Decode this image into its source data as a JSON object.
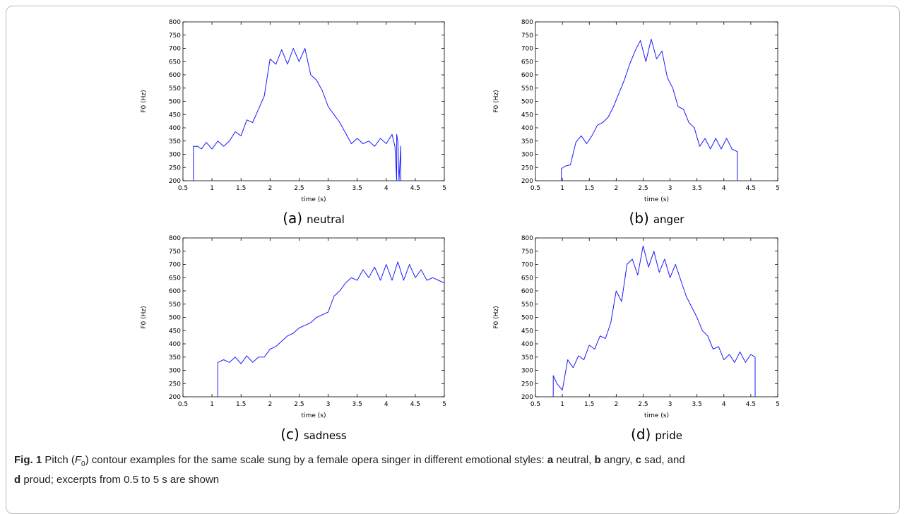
{
  "panels": [
    {
      "letter": "(a)",
      "name": "neutral"
    },
    {
      "letter": "(b)",
      "name": "anger"
    },
    {
      "letter": "(c)",
      "name": "sadness"
    },
    {
      "letter": "(d)",
      "name": "pride"
    }
  ],
  "caption": {
    "fig_label": "Fig. 1",
    "text_1": " Pitch (",
    "f_symbol": "F",
    "f_subscript": "0",
    "text_2": ") contour examples for the same scale sung by a female opera singer in different emotional styles: ",
    "a": "a",
    "a_text": " neutral, ",
    "b": "b",
    "b_text": " angry, ",
    "c": "c",
    "c_text": " sad, and",
    "d": "d",
    "d_text": " proud; excerpts from 0.5 to 5 s are shown"
  },
  "chart_data": [
    {
      "type": "line",
      "xlabel": "time (s)",
      "ylabel": "F0 (Hz)",
      "xlim": [
        0.5,
        5
      ],
      "ylim": [
        200,
        800
      ],
      "xticks": [
        0.5,
        1,
        1.5,
        2,
        2.5,
        3,
        3.5,
        4,
        4.5,
        5
      ],
      "yticks": [
        200,
        250,
        300,
        350,
        400,
        450,
        500,
        550,
        600,
        650,
        700,
        750,
        800
      ],
      "color": "#1a1aff",
      "series": [
        {
          "x": [
            0.68,
            0.68,
            0.75,
            0.82,
            0.9,
            1.0,
            1.1,
            1.2,
            1.3,
            1.4,
            1.5,
            1.6,
            1.7,
            1.8,
            1.9,
            2.0,
            2.1,
            2.2,
            2.3,
            2.4,
            2.5,
            2.6,
            2.7,
            2.8,
            2.9,
            3.0,
            3.1,
            3.2,
            3.3,
            3.4,
            3.5,
            3.6,
            3.7,
            3.8,
            3.9,
            4.0,
            4.1,
            4.15,
            4.18,
            4.18,
            4.2,
            4.22,
            4.25,
            4.25
          ],
          "y": [
            200,
            330,
            330,
            320,
            345,
            320,
            350,
            330,
            350,
            385,
            370,
            430,
            420,
            470,
            520,
            660,
            640,
            695,
            640,
            700,
            650,
            700,
            600,
            580,
            540,
            480,
            450,
            420,
            380,
            340,
            360,
            340,
            350,
            330,
            360,
            340,
            375,
            330,
            200,
            375,
            350,
            200,
            330,
            200
          ]
        }
      ]
    },
    {
      "type": "line",
      "xlabel": "time (s)",
      "ylabel": "F0 (Hz)",
      "xlim": [
        0.5,
        5
      ],
      "ylim": [
        200,
        800
      ],
      "xticks": [
        0.5,
        1,
        1.5,
        2,
        2.5,
        3,
        3.5,
        4,
        4.5,
        5
      ],
      "yticks": [
        200,
        250,
        300,
        350,
        400,
        450,
        500,
        550,
        600,
        650,
        700,
        750,
        800
      ],
      "color": "#1a1aff",
      "series": [
        {
          "x": [
            0.98,
            0.98,
            1.05,
            1.15,
            1.25,
            1.35,
            1.45,
            1.55,
            1.65,
            1.75,
            1.85,
            1.95,
            2.05,
            2.15,
            2.25,
            2.35,
            2.45,
            2.55,
            2.65,
            2.75,
            2.85,
            2.95,
            3.05,
            3.15,
            3.25,
            3.35,
            3.45,
            3.55,
            3.65,
            3.75,
            3.85,
            3.95,
            4.05,
            4.15,
            4.25,
            4.25
          ],
          "y": [
            200,
            245,
            255,
            260,
            345,
            370,
            340,
            370,
            410,
            420,
            440,
            480,
            530,
            580,
            640,
            690,
            730,
            650,
            735,
            660,
            690,
            590,
            550,
            480,
            470,
            420,
            400,
            330,
            360,
            320,
            360,
            320,
            360,
            320,
            310,
            200
          ]
        }
      ]
    },
    {
      "type": "line",
      "xlabel": "time (s)",
      "ylabel": "F0 (Hz)",
      "xlim": [
        0.5,
        5
      ],
      "ylim": [
        200,
        800
      ],
      "xticks": [
        0.5,
        1,
        1.5,
        2,
        2.5,
        3,
        3.5,
        4,
        4.5,
        5
      ],
      "yticks": [
        200,
        250,
        300,
        350,
        400,
        450,
        500,
        550,
        600,
        650,
        700,
        750,
        800
      ],
      "color": "#1a1aff",
      "series": [
        {
          "x": [
            1.1,
            1.1,
            1.2,
            1.3,
            1.4,
            1.5,
            1.6,
            1.7,
            1.8,
            1.9,
            2.0,
            2.1,
            2.2,
            2.3,
            2.4,
            2.5,
            2.6,
            2.7,
            2.8,
            2.9,
            3.0,
            3.1,
            3.2,
            3.3,
            3.4,
            3.5,
            3.6,
            3.7,
            3.8,
            3.9,
            4.0,
            4.1,
            4.2,
            4.3,
            4.4,
            4.5,
            4.6,
            4.7,
            4.8,
            4.9,
            5.0
          ],
          "y": [
            200,
            330,
            340,
            330,
            350,
            325,
            355,
            330,
            350,
            350,
            380,
            390,
            410,
            430,
            440,
            460,
            470,
            480,
            500,
            510,
            520,
            580,
            600,
            630,
            650,
            640,
            680,
            650,
            690,
            640,
            700,
            640,
            710,
            640,
            700,
            650,
            680,
            640,
            650,
            640,
            630
          ]
        }
      ]
    },
    {
      "type": "line",
      "xlabel": "time (s)",
      "ylabel": "F0 (Hz)",
      "xlim": [
        0.5,
        5
      ],
      "ylim": [
        200,
        800
      ],
      "xticks": [
        0.5,
        1,
        1.5,
        2,
        2.5,
        3,
        3.5,
        4,
        4.5,
        5
      ],
      "yticks": [
        200,
        250,
        300,
        350,
        400,
        450,
        500,
        550,
        600,
        650,
        700,
        750,
        800
      ],
      "color": "#1a1aff",
      "series": [
        {
          "x": [
            0.83,
            0.83,
            0.9,
            1.0,
            1.1,
            1.2,
            1.3,
            1.4,
            1.5,
            1.6,
            1.7,
            1.8,
            1.9,
            2.0,
            2.1,
            2.2,
            2.3,
            2.4,
            2.5,
            2.6,
            2.7,
            2.8,
            2.9,
            3.0,
            3.1,
            3.2,
            3.3,
            3.4,
            3.5,
            3.6,
            3.7,
            3.8,
            3.9,
            4.0,
            4.1,
            4.2,
            4.3,
            4.4,
            4.5,
            4.58,
            4.58
          ],
          "y": [
            200,
            280,
            250,
            225,
            340,
            310,
            355,
            340,
            395,
            380,
            430,
            420,
            480,
            600,
            560,
            700,
            720,
            660,
            770,
            690,
            750,
            670,
            720,
            650,
            700,
            640,
            580,
            540,
            500,
            450,
            430,
            380,
            390,
            340,
            360,
            330,
            370,
            330,
            360,
            350,
            200
          ]
        }
      ]
    }
  ]
}
